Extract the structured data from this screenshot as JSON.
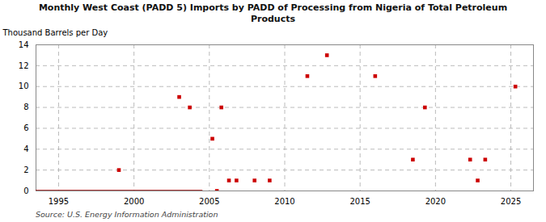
{
  "chart_data": {
    "type": "scatter",
    "title": "Monthly West Coast (PADD 5) Imports by PADD of Processing from Nigeria of Total Petroleum\nProducts",
    "ylabel": "Thousand Barrels per Day",
    "source": "Source: U.S. Energy Information Administration",
    "xlim": [
      1993.5,
      2026.5
    ],
    "xticks": [
      1995,
      2000,
      2005,
      2010,
      2015,
      2020,
      2025
    ],
    "ylim": [
      0,
      14
    ],
    "yticks": [
      0,
      2,
      4,
      6,
      8,
      10,
      12,
      14
    ],
    "grid": true,
    "series": [
      {
        "type": "line",
        "color": "#990000",
        "x": [
          1993.5,
          2004.5
        ],
        "values": [
          0,
          0
        ]
      },
      {
        "type": "scatter",
        "color": "#cc0000",
        "marker": "square",
        "x": [
          1999,
          2003,
          2003.7,
          2005.2,
          2005.8,
          2006.3,
          2006.8,
          2005.5,
          2008,
          2009,
          2011.5,
          2012.8,
          2016,
          2018.5,
          2019.3,
          2022.3,
          2022.8,
          2023.3,
          2025.3
        ],
        "values": [
          2,
          9,
          8,
          5,
          8,
          1,
          1,
          0,
          1,
          1,
          11,
          13,
          11,
          3,
          8,
          3,
          1,
          3,
          10
        ]
      }
    ]
  }
}
